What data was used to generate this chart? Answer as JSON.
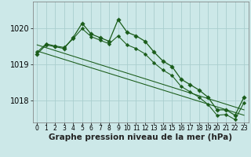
{
  "xlabel": "Graphe pression niveau de la mer (hPa)",
  "background_color": "#cce8e8",
  "grid_color": "#aacece",
  "line_color": "#1a5c1a",
  "marker_color": "#1a5c1a",
  "series1_x": [
    0,
    1,
    2,
    3,
    4,
    5,
    6,
    7,
    8,
    9,
    10,
    11,
    12,
    13,
    14,
    15,
    16,
    17,
    18,
    19,
    20,
    21,
    22,
    23
  ],
  "series1_y": [
    1019.3,
    1019.55,
    1019.5,
    1019.45,
    1019.75,
    1020.15,
    1019.85,
    1019.75,
    1019.65,
    1020.25,
    1019.9,
    1019.8,
    1019.65,
    1019.35,
    1019.1,
    1018.95,
    1018.6,
    1018.45,
    1018.3,
    1018.1,
    1017.75,
    1017.75,
    1017.6,
    1018.1
  ],
  "series2_x": [
    0,
    1,
    2,
    3,
    4,
    5,
    6,
    7,
    8,
    9,
    10,
    11,
    12,
    13,
    14,
    15,
    16,
    17,
    18,
    19,
    20,
    21,
    22,
    23
  ],
  "series2_y": [
    1019.35,
    1019.58,
    1019.52,
    1019.48,
    1019.72,
    1020.0,
    1019.78,
    1019.68,
    1019.58,
    1019.8,
    1019.55,
    1019.45,
    1019.3,
    1019.05,
    1018.85,
    1018.7,
    1018.4,
    1018.25,
    1018.1,
    1017.9,
    1017.6,
    1017.62,
    1017.48,
    1017.95
  ],
  "trend_x": [
    0,
    23
  ],
  "trend_y": [
    1019.55,
    1017.75
  ],
  "trend2_x": [
    0,
    23
  ],
  "trend2_y": [
    1019.38,
    1017.6
  ],
  "ylim_min": 1017.4,
  "ylim_max": 1020.75,
  "ytick_values": [
    1018,
    1019,
    1020
  ],
  "xtick_values": [
    0,
    1,
    2,
    3,
    4,
    5,
    6,
    7,
    8,
    9,
    10,
    11,
    12,
    13,
    14,
    15,
    16,
    17,
    18,
    19,
    20,
    21,
    22,
    23
  ],
  "xlabel_fontsize": 7.5,
  "ytick_fontsize": 7,
  "xtick_fontsize": 5.5,
  "linewidth": 0.9,
  "markersize": 2.8
}
